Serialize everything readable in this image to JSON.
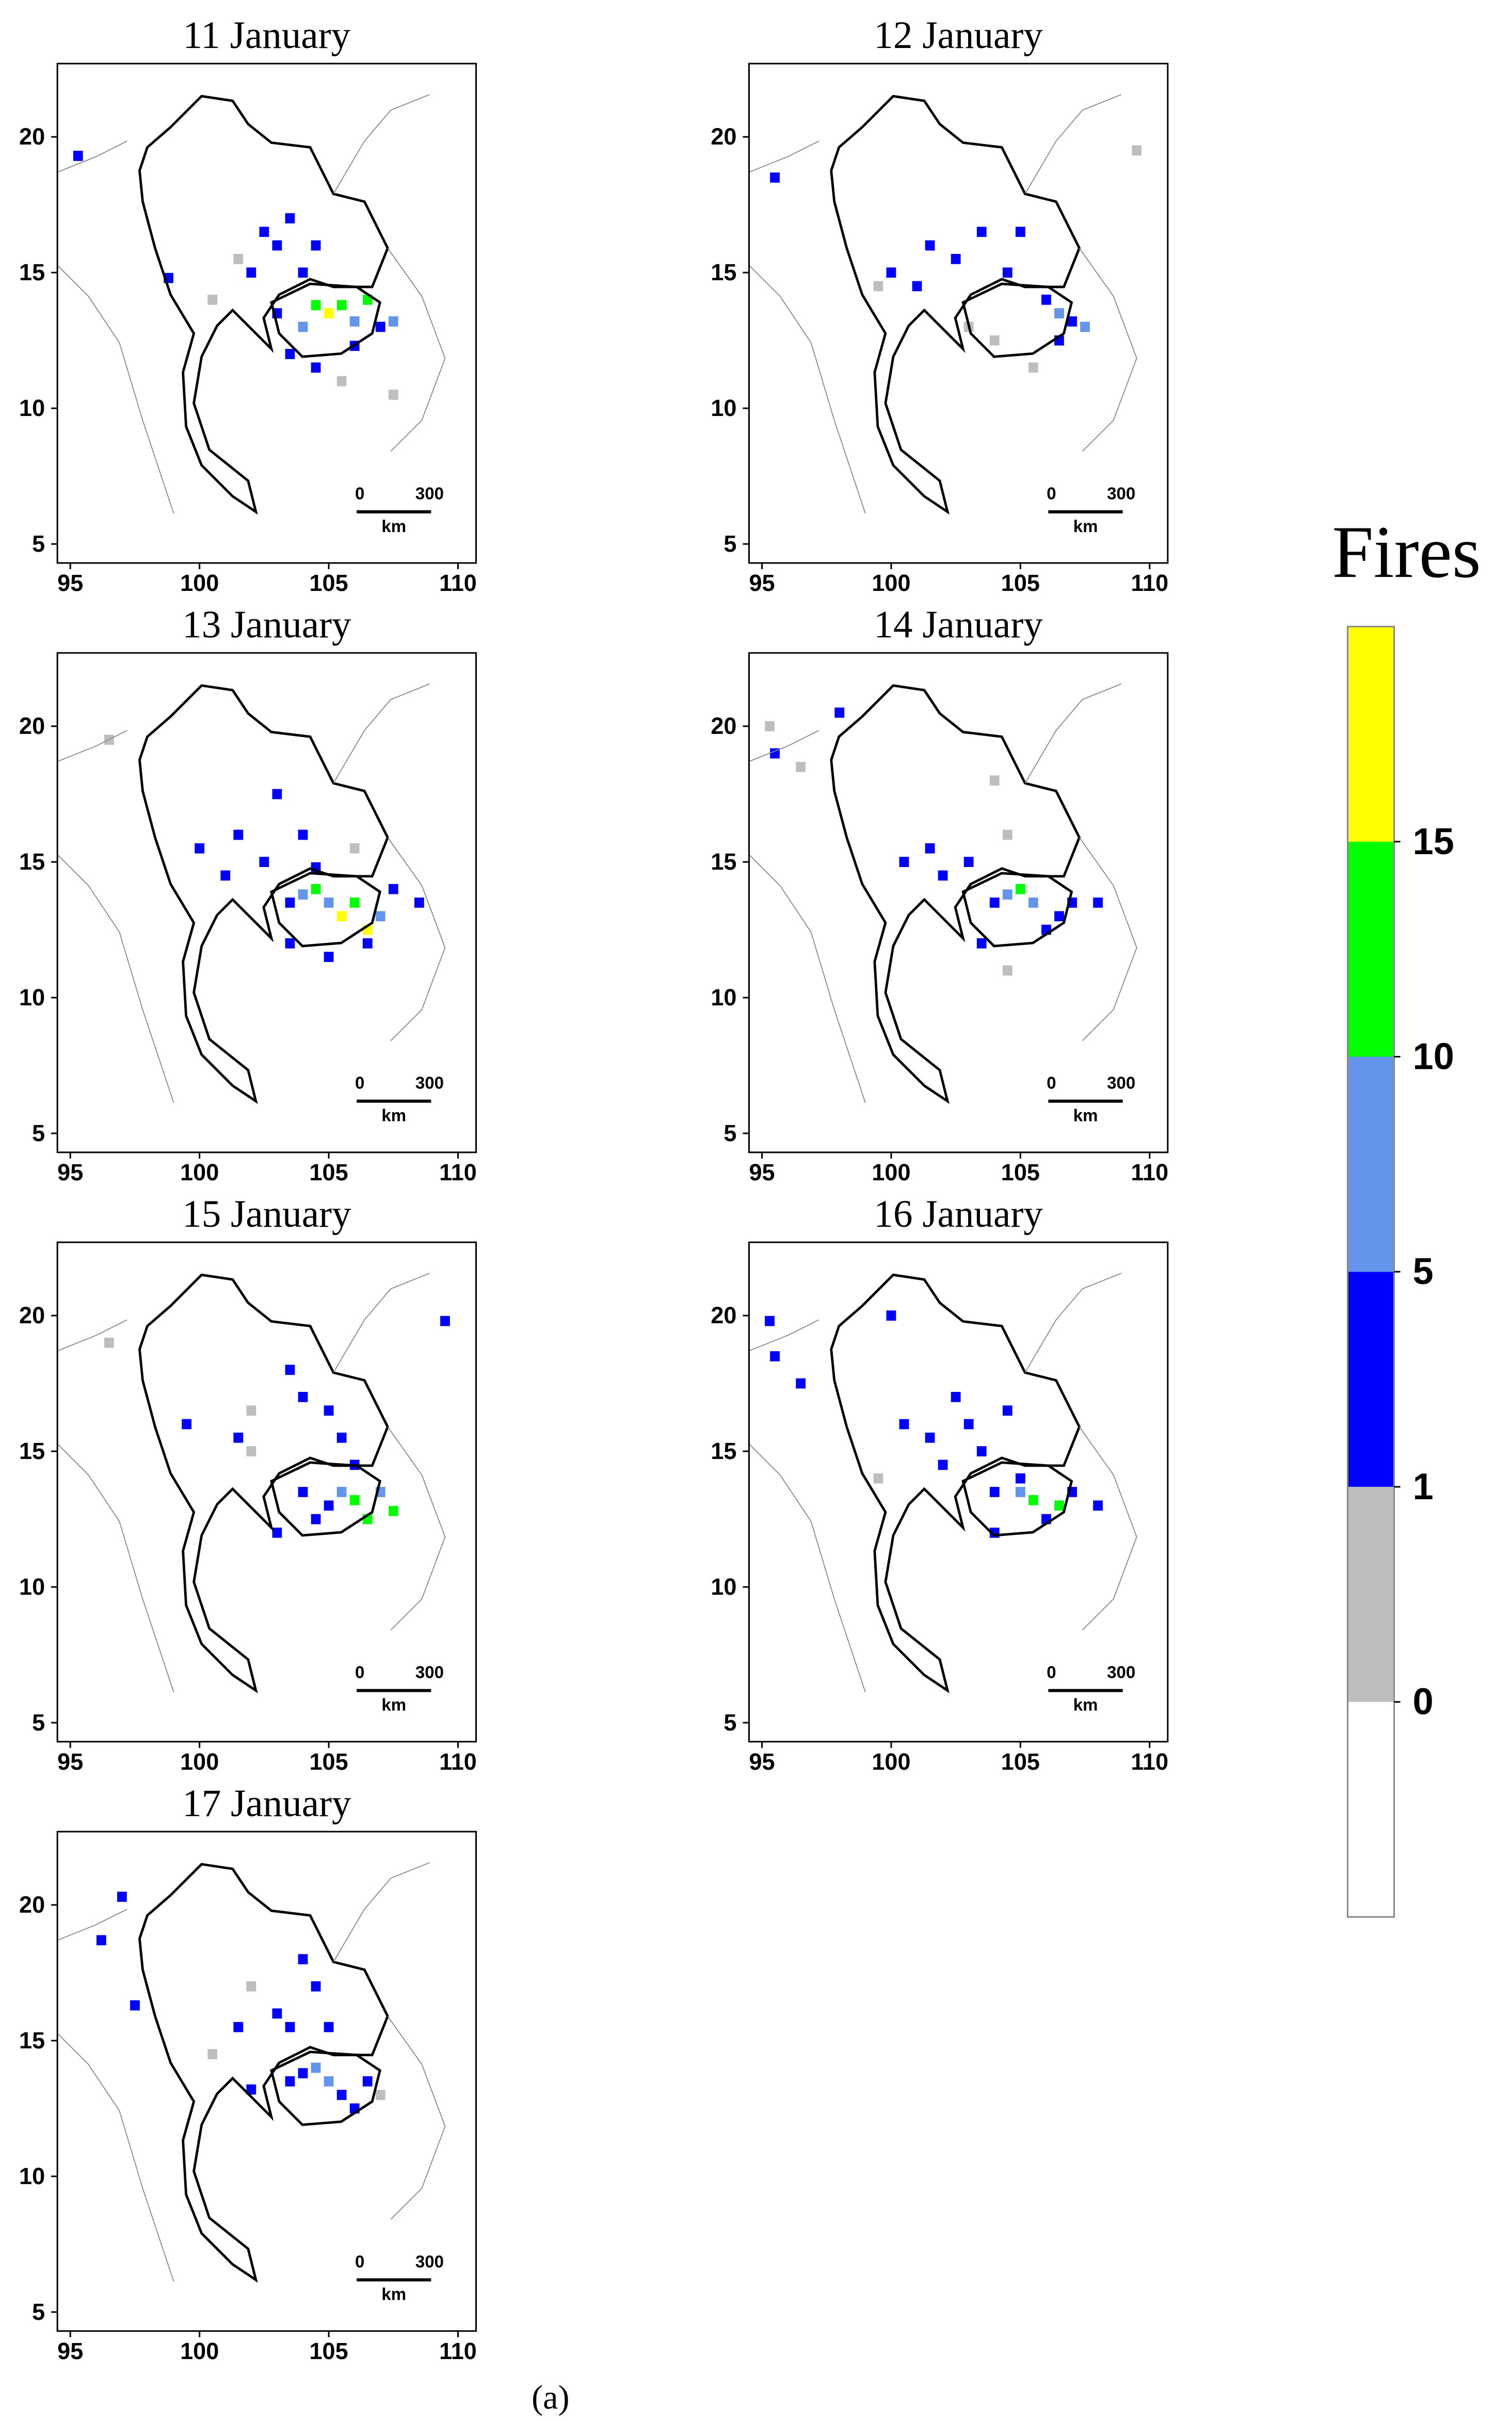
{
  "legend": {
    "title": "Fires",
    "levels": [
      0,
      1,
      5,
      10,
      15
    ],
    "colors": [
      "#ffffff",
      "#bebebe",
      "#0000ff",
      "#6495ed",
      "#00ff00",
      "#ffff00"
    ]
  },
  "map": {
    "xlim": [
      94.5,
      110.7
    ],
    "ylim": [
      4.3,
      22.7
    ],
    "xticks": [
      95,
      100,
      105,
      110
    ],
    "yticks": [
      5,
      10,
      15,
      20
    ],
    "scale_bar": {
      "start": "0",
      "end": "300",
      "unit": "km"
    }
  },
  "panels": [
    {
      "title": "11 January",
      "cells": [
        [
          95.3,
          19.3,
          3
        ],
        [
          101.5,
          15.5,
          0.5
        ],
        [
          102,
          15,
          3
        ],
        [
          102.5,
          16.5,
          3
        ],
        [
          103,
          16,
          3
        ],
        [
          103.5,
          17,
          3
        ],
        [
          104,
          15,
          3
        ],
        [
          104.5,
          16,
          3
        ],
        [
          103,
          13.5,
          3
        ],
        [
          103.5,
          12,
          3
        ],
        [
          104,
          13,
          7
        ],
        [
          104.5,
          13.8,
          12
        ],
        [
          105,
          13.5,
          17
        ],
        [
          105.5,
          13.8,
          12
        ],
        [
          106,
          13.2,
          7
        ],
        [
          106.5,
          14,
          12
        ],
        [
          107,
          13,
          3
        ],
        [
          107.5,
          13.2,
          7
        ],
        [
          106,
          12.3,
          3
        ],
        [
          104.5,
          11.5,
          3
        ],
        [
          105.5,
          11,
          0.5
        ],
        [
          100.5,
          14,
          0.5
        ],
        [
          98.8,
          14.8,
          3
        ],
        [
          107.5,
          10.5,
          0.5
        ]
      ]
    },
    {
      "title": "12 January",
      "cells": [
        [
          95.5,
          18.5,
          3
        ],
        [
          100,
          15,
          3
        ],
        [
          101,
          14.5,
          3
        ],
        [
          101.5,
          16,
          3
        ],
        [
          102.5,
          15.5,
          3
        ],
        [
          103.5,
          16.5,
          3
        ],
        [
          104.5,
          15,
          3
        ],
        [
          105,
          16.5,
          3
        ],
        [
          106,
          14,
          3
        ],
        [
          106.5,
          13.5,
          7
        ],
        [
          107,
          13.2,
          3
        ],
        [
          107.5,
          13,
          7
        ],
        [
          106.5,
          12.5,
          3
        ],
        [
          103,
          13,
          0.5
        ],
        [
          104,
          12.5,
          0.5
        ],
        [
          105.5,
          11.5,
          0.5
        ],
        [
          99.5,
          14.5,
          0.5
        ],
        [
          109.5,
          19.5,
          0.5
        ]
      ]
    },
    {
      "title": "13 January",
      "cells": [
        [
          96.5,
          19.5,
          0.5
        ],
        [
          100,
          15.5,
          3
        ],
        [
          101,
          14.5,
          3
        ],
        [
          101.5,
          16,
          3
        ],
        [
          102.5,
          15,
          3
        ],
        [
          103,
          17.5,
          3
        ],
        [
          104,
          16,
          3
        ],
        [
          104.5,
          14.8,
          3
        ],
        [
          103.5,
          13.5,
          3
        ],
        [
          104,
          13.8,
          7
        ],
        [
          104.5,
          14,
          12
        ],
        [
          105,
          13.5,
          7
        ],
        [
          105.5,
          13,
          17
        ],
        [
          106,
          13.5,
          12
        ],
        [
          106.5,
          12.5,
          17
        ],
        [
          107,
          13,
          7
        ],
        [
          106.5,
          12,
          3
        ],
        [
          105,
          11.5,
          3
        ],
        [
          107.5,
          14,
          3
        ],
        [
          108.5,
          13.5,
          3
        ],
        [
          103.5,
          12,
          3
        ],
        [
          106,
          15.5,
          0.5
        ]
      ]
    },
    {
      "title": "14 January",
      "cells": [
        [
          95.3,
          20,
          0.5
        ],
        [
          95.5,
          19,
          3
        ],
        [
          96.5,
          18.5,
          0.5
        ],
        [
          98,
          20.5,
          3
        ],
        [
          100.5,
          15,
          3
        ],
        [
          101.5,
          15.5,
          3
        ],
        [
          102,
          14.5,
          3
        ],
        [
          103,
          15,
          3
        ],
        [
          104,
          18,
          0.5
        ],
        [
          104.5,
          16,
          0.5
        ],
        [
          104,
          13.5,
          3
        ],
        [
          104.5,
          13.8,
          7
        ],
        [
          105,
          14,
          12
        ],
        [
          105.5,
          13.5,
          7
        ],
        [
          106,
          12.5,
          3
        ],
        [
          106.5,
          13,
          3
        ],
        [
          107,
          13.5,
          3
        ],
        [
          108,
          13.5,
          3
        ],
        [
          103.5,
          12,
          3
        ],
        [
          104.5,
          11,
          0.5
        ]
      ]
    },
    {
      "title": "15 January",
      "cells": [
        [
          96.5,
          19,
          0.5
        ],
        [
          99.5,
          16,
          3
        ],
        [
          101.5,
          15.5,
          3
        ],
        [
          102,
          16.5,
          0.5
        ],
        [
          103.5,
          18,
          3
        ],
        [
          104,
          17,
          3
        ],
        [
          105,
          16.5,
          3
        ],
        [
          105.5,
          15.5,
          3
        ],
        [
          104,
          13.5,
          3
        ],
        [
          104.5,
          12.5,
          3
        ],
        [
          105,
          13,
          3
        ],
        [
          105.5,
          13.5,
          7
        ],
        [
          106,
          13.2,
          12
        ],
        [
          106.5,
          12.5,
          12
        ],
        [
          107,
          13.5,
          7
        ],
        [
          107.5,
          12.8,
          12
        ],
        [
          106,
          14.5,
          3
        ],
        [
          103,
          12,
          3
        ],
        [
          109.5,
          19.8,
          3
        ],
        [
          102,
          15,
          0.5
        ]
      ]
    },
    {
      "title": "16 January",
      "cells": [
        [
          95.3,
          19.8,
          3
        ],
        [
          95.5,
          18.5,
          3
        ],
        [
          96.5,
          17.5,
          3
        ],
        [
          100,
          20,
          3
        ],
        [
          100.5,
          16,
          3
        ],
        [
          101.5,
          15.5,
          3
        ],
        [
          102,
          14.5,
          3
        ],
        [
          102.5,
          17,
          3
        ],
        [
          103,
          16,
          3
        ],
        [
          103.5,
          15,
          3
        ],
        [
          104.5,
          16.5,
          3
        ],
        [
          105,
          14,
          3
        ],
        [
          104,
          13.5,
          3
        ],
        [
          105,
          13.5,
          7
        ],
        [
          105.5,
          13.2,
          12
        ],
        [
          106.5,
          13,
          12
        ],
        [
          107,
          13.5,
          3
        ],
        [
          108,
          13,
          3
        ],
        [
          106,
          12.5,
          3
        ],
        [
          104,
          12,
          3
        ],
        [
          99.5,
          14,
          0.5
        ]
      ]
    },
    {
      "title": "17 January",
      "cells": [
        [
          96.2,
          18.7,
          3
        ],
        [
          97,
          20.3,
          3
        ],
        [
          97.5,
          16.3,
          3
        ],
        [
          101.5,
          15.5,
          3
        ],
        [
          102,
          17,
          0.5
        ],
        [
          103,
          16,
          3
        ],
        [
          103.5,
          15.5,
          3
        ],
        [
          104.5,
          17,
          3
        ],
        [
          104,
          18,
          3
        ],
        [
          105,
          15.5,
          3
        ],
        [
          103.5,
          13.5,
          3
        ],
        [
          104,
          13.8,
          3
        ],
        [
          104.5,
          14,
          7
        ],
        [
          105,
          13.5,
          7
        ],
        [
          105.5,
          13,
          3
        ],
        [
          106,
          12.5,
          3
        ],
        [
          106.5,
          13.5,
          3
        ],
        [
          107,
          13,
          0.5
        ],
        [
          102,
          13.2,
          3
        ],
        [
          100.5,
          14.5,
          0.5
        ]
      ]
    }
  ],
  "caption": "(a)"
}
